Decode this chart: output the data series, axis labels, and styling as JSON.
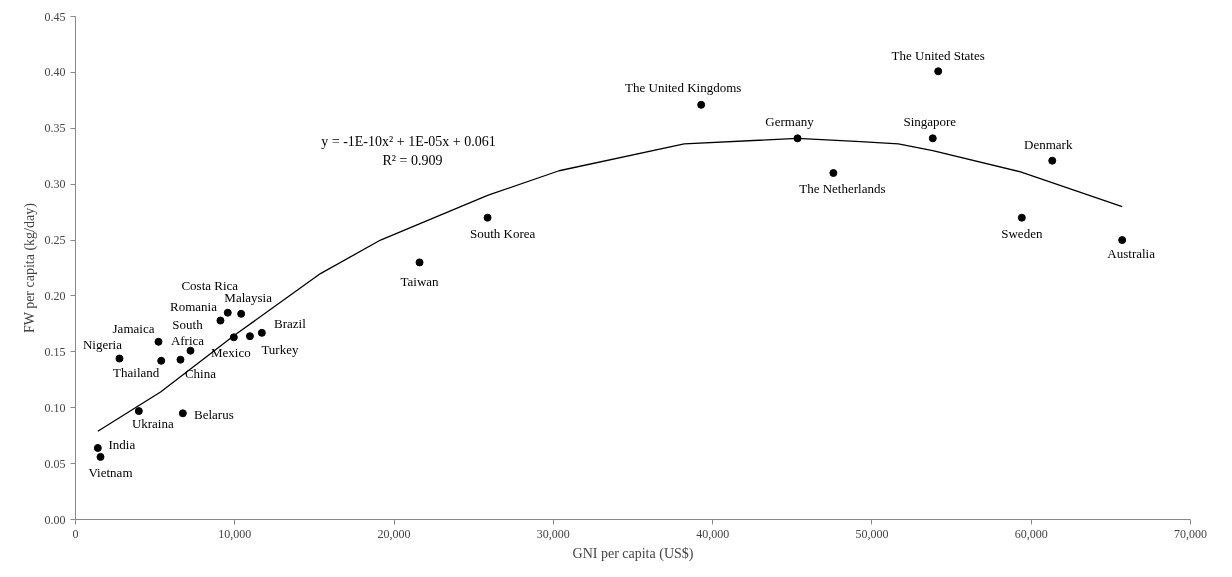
{
  "chart_data": {
    "type": "scatter",
    "xlabel": "GNI per capita (US$)",
    "ylabel": "FW per capita (kg/day)",
    "x": [
      1400,
      1570,
      3975,
      6740,
      2760,
      5380,
      5210,
      6590,
      7220,
      9100,
      9560,
      10400,
      9940,
      10950,
      11700,
      21600,
      25870,
      39280,
      45330,
      47580,
      54160,
      53820,
      61320,
      59410,
      65710
    ],
    "series": [
      {
        "color": "#000000",
        "marker": "circle",
        "values": [
          0.064,
          0.056,
          0.097,
          0.095,
          0.144,
          0.142,
          0.159,
          0.143,
          0.151,
          0.178,
          0.185,
          0.184,
          0.163,
          0.164,
          0.167,
          0.23,
          0.27,
          0.371,
          0.341,
          0.31,
          0.401,
          0.341,
          0.321,
          0.27,
          0.25
        ]
      },
      {
        "type": "line",
        "color": "#000000",
        "marker": "none",
        "line_style": "solid",
        "x": [
          1400,
          5340,
          10000,
          15380,
          19150,
          25870,
          30360,
          38210,
          45330,
          49280,
          51660,
          53820,
          59330,
          65710
        ],
        "values": [
          0.079,
          0.114,
          0.165,
          0.22,
          0.25,
          0.29,
          0.312,
          0.336,
          0.341,
          0.338,
          0.336,
          0.33,
          0.311,
          0.28
        ]
      }
    ],
    "xlim": [
      0,
      70000
    ],
    "xticks": [
      0,
      {
        "value": 10000,
        "label": "10,000"
      },
      {
        "value": 20000,
        "label": "20,000"
      },
      {
        "value": 30000,
        "label": "30,000"
      },
      {
        "value": 40000,
        "label": "40,000"
      },
      {
        "value": 50000,
        "label": "50,000"
      },
      {
        "value": 60000,
        "label": "60,000"
      },
      {
        "value": 70000,
        "label": "70,000"
      }
    ],
    "ylim": [
      0,
      0.45
    ],
    "yticks": [
      {
        "value": 0,
        "label": "0.00"
      },
      {
        "value": 0.05,
        "label": "0.05"
      },
      {
        "value": 0.1,
        "label": "0.10"
      },
      {
        "value": 0.15,
        "label": "0.15"
      },
      {
        "value": 0.2,
        "label": "0.20"
      },
      {
        "value": 0.25,
        "label": "0.25"
      },
      {
        "value": 0.3,
        "label": "0.30"
      },
      {
        "value": 0.35,
        "label": "0.35"
      },
      {
        "value": 0.4,
        "label": "0.40"
      },
      {
        "value": 0.45,
        "label": "0.45"
      }
    ],
    "grid": false,
    "annotations": [
      {
        "text": "India",
        "x": 1400,
        "y": 0.064
      },
      {
        "text": "Vietnam",
        "x": 1570,
        "y": 0.056
      },
      {
        "text": "Ukraina",
        "x": 3975,
        "y": 0.097
      },
      {
        "text": "Belarus",
        "x": 6740,
        "y": 0.095
      },
      {
        "text": "Nigeria",
        "x": 2760,
        "y": 0.144
      },
      {
        "text": "Thailand",
        "x": 5380,
        "y": 0.142
      },
      {
        "text": "Jamaica",
        "x": 5210,
        "y": 0.159
      },
      {
        "text": "China",
        "x": 6590,
        "y": 0.143
      },
      {
        "text": "South\nAfrica",
        "x": 7220,
        "y": 0.151
      },
      {
        "text": "Romania",
        "x": 9100,
        "y": 0.178
      },
      {
        "text": "Costa Rica",
        "x": 9560,
        "y": 0.185
      },
      {
        "text": "Malaysia",
        "x": 10400,
        "y": 0.184
      },
      {
        "text": "Mexico",
        "x": 9940,
        "y": 0.163
      },
      {
        "text": "Turkey",
        "x": 10950,
        "y": 0.164
      },
      {
        "text": "Brazil",
        "x": 11700,
        "y": 0.167
      },
      {
        "text": "Taiwan",
        "x": 21600,
        "y": 0.23
      },
      {
        "text": "South Korea",
        "x": 25870,
        "y": 0.27
      },
      {
        "text": "The United Kingdoms",
        "x": 39280,
        "y": 0.371
      },
      {
        "text": "Germany",
        "x": 45330,
        "y": 0.341
      },
      {
        "text": "The Netherlands",
        "x": 47580,
        "y": 0.31
      },
      {
        "text": "The United States",
        "x": 54160,
        "y": 0.401
      },
      {
        "text": "Singapore",
        "x": 53820,
        "y": 0.341
      },
      {
        "text": "Denmark",
        "x": 61320,
        "y": 0.321
      },
      {
        "text": "Sweden",
        "x": 59410,
        "y": 0.27
      },
      {
        "text": "Australia",
        "x": 65710,
        "y": 0.25
      },
      "y = -1E-10x² + 1E-05x + 0.061",
      "R² = 0.909"
    ]
  }
}
